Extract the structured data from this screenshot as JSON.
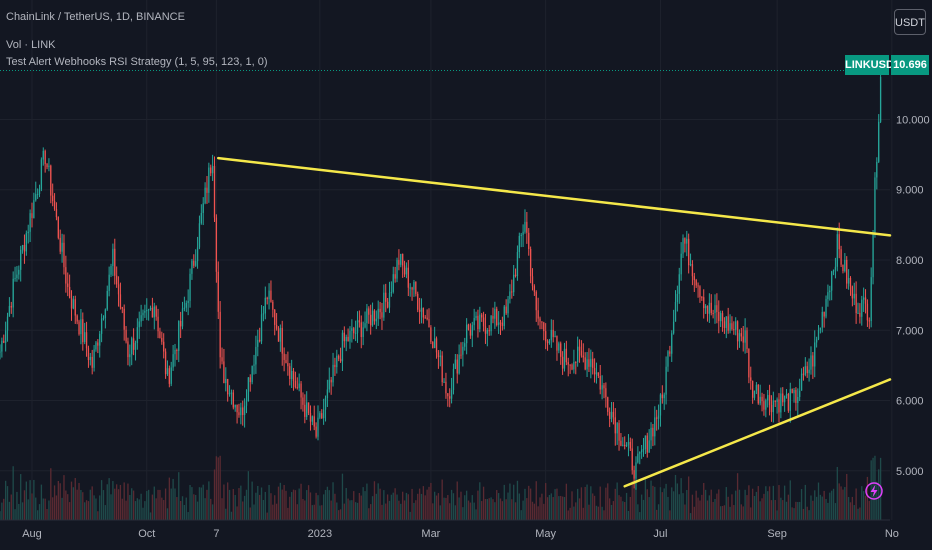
{
  "legend": {
    "symbol_line": "ChainLink / TetherUS, 1D, BINANCE",
    "volume_line": "Vol · LINK",
    "strategy_line": "Test Alert Webhooks RSI Strategy (1, 5, 95, 123, 1, 0)"
  },
  "currency_button": "USDT",
  "price_tag": {
    "symbol": "LINKUSDT",
    "price": "10.696"
  },
  "colors": {
    "background": "#131722",
    "up": "#26a69a",
    "down": "#ef5350",
    "trendline": "#f5e84a",
    "grid": "#1e222d",
    "volume_up": "#1f4a4a",
    "volume_down": "#5a2a32"
  },
  "alert_icon": "lightning-bolt-icon",
  "chart_data": {
    "type": "candlestick",
    "y_axis": {
      "position": "right",
      "range": [
        4.3,
        11.7
      ],
      "ticks": [
        "5.000",
        "6.000",
        "7.000",
        "8.000",
        "9.000",
        "10.000"
      ],
      "grid": true
    },
    "x_axis": {
      "ticks": [
        "Aug",
        "Oct",
        "7",
        "2023",
        "Mar",
        "May",
        "Jul",
        "Sep",
        "No"
      ]
    },
    "date_range": [
      "2022-07-15",
      "2023-10-31"
    ],
    "price_path_anchors": [
      [
        "2022-07-15",
        6.7
      ],
      [
        "2022-07-22",
        7.6
      ],
      [
        "2022-08-08",
        9.5
      ],
      [
        "2022-08-20",
        7.6
      ],
      [
        "2022-09-02",
        6.5
      ],
      [
        "2022-09-13",
        8.0
      ],
      [
        "2022-09-21",
        6.7
      ],
      [
        "2022-10-05",
        7.4
      ],
      [
        "2022-10-12",
        6.3
      ],
      [
        "2022-10-22",
        7.4
      ],
      [
        "2022-11-05",
        9.5
      ],
      [
        "2022-11-09",
        6.5
      ],
      [
        "2022-11-20",
        5.8
      ],
      [
        "2022-12-04",
        7.5
      ],
      [
        "2022-12-18",
        6.3
      ],
      [
        "2022-12-30",
        5.5
      ],
      [
        "2023-01-13",
        6.8
      ],
      [
        "2023-02-05",
        7.4
      ],
      [
        "2023-02-12",
        8.0
      ],
      [
        "2023-02-28",
        7.1
      ],
      [
        "2023-03-10",
        6.1
      ],
      [
        "2023-03-20",
        7.0
      ],
      [
        "2023-04-10",
        7.2
      ],
      [
        "2023-04-20",
        8.6
      ],
      [
        "2023-04-26",
        7.2
      ],
      [
        "2023-05-10",
        6.6
      ],
      [
        "2023-05-25",
        6.6
      ],
      [
        "2023-06-10",
        5.5
      ],
      [
        "2023-06-18",
        5.0
      ],
      [
        "2023-07-02",
        6.0
      ],
      [
        "2023-07-13",
        8.3
      ],
      [
        "2023-07-26",
        7.3
      ],
      [
        "2023-08-15",
        6.9
      ],
      [
        "2023-08-18",
        6.2
      ],
      [
        "2023-08-27",
        6.0
      ],
      [
        "2023-09-10",
        6.0
      ],
      [
        "2023-09-20",
        6.6
      ],
      [
        "2023-10-03",
        8.2
      ],
      [
        "2023-10-12",
        7.4
      ],
      [
        "2023-10-20",
        7.3
      ],
      [
        "2023-10-23",
        9.0
      ],
      [
        "2023-10-26",
        10.7
      ]
    ],
    "trendlines": [
      {
        "name": "resistance",
        "from": [
          "2022-11-08",
          9.45
        ],
        "to": [
          "2023-10-31",
          8.35
        ]
      },
      {
        "name": "support",
        "from": [
          "2023-06-12",
          4.78
        ],
        "to": [
          "2023-10-31",
          6.3
        ]
      }
    ],
    "last_price": 10.696
  }
}
